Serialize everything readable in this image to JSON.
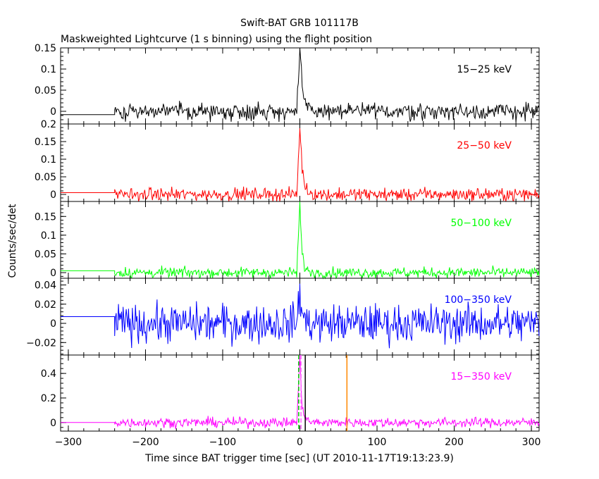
{
  "title": "Swift-BAT GRB 101117B",
  "subtitle": "Maskweighted Lightcurve (1 s binning) using the flight position",
  "xlabel": "Time since BAT trigger time [sec] (UT 2010-11-17T19:13:23.9)",
  "ylabel": "Counts/sec/det",
  "colors": {
    "axis": "#000000",
    "band1": "#000000",
    "band2": "#ff0000",
    "band3": "#00ff00",
    "band4": "#0000ff",
    "band5": "#ff00ff",
    "t90_start": "#00cc00",
    "t90_stop": "#000000",
    "t50": "#ff66ff",
    "marker_orange": "#ff8800"
  },
  "chart_data": {
    "type": "line",
    "x_range": [
      -310,
      310
    ],
    "x_ticks": [
      -300,
      -200,
      -100,
      0,
      100,
      200,
      300
    ],
    "x_tick_labels": [
      "−300",
      "−200",
      "−100",
      "0",
      "100",
      "200",
      "300"
    ],
    "data_start": -240,
    "pre_data_level": [
      -0.008,
      0.005,
      0.005,
      0.007,
      0.0
    ],
    "panels": [
      {
        "label": "15−25 keV",
        "ylim": [
          -0.03,
          0.15
        ],
        "yticks": [
          0,
          0.05,
          0.1,
          0.15
        ],
        "ytick_labels": [
          "0",
          "0.05",
          "0.1",
          "0.15"
        ],
        "peak": 0.14,
        "noise": 0.01,
        "decay": 4
      },
      {
        "label": "25−50 keV",
        "ylim": [
          -0.02,
          0.2
        ],
        "yticks": [
          0,
          0.05,
          0.1,
          0.15,
          0.2
        ],
        "ytick_labels": [
          "0",
          "0.05",
          "0.1",
          "0.15",
          "0.2"
        ],
        "peak": 0.19,
        "noise": 0.009,
        "decay": 4
      },
      {
        "label": "50−100 keV",
        "ylim": [
          -0.015,
          0.19
        ],
        "yticks": [
          0,
          0.05,
          0.1,
          0.15
        ],
        "ytick_labels": [
          "0",
          "0.05",
          "0.1",
          "0.15"
        ],
        "peak": 0.18,
        "noise": 0.007,
        "decay": 3
      },
      {
        "label": "100−350 keV",
        "ylim": [
          -0.033,
          0.047
        ],
        "yticks": [
          -0.02,
          0,
          0.02,
          0.04
        ],
        "ytick_labels": [
          "−0.02",
          "0",
          "0.02",
          "0.04"
        ],
        "peak": 0.035,
        "noise": 0.01,
        "decay": 3
      },
      {
        "label": "15−350 keV",
        "ylim": [
          -0.07,
          0.55
        ],
        "yticks": [
          0,
          0.2,
          0.4
        ],
        "ytick_labels": [
          "0",
          "0.2",
          "0.4"
        ],
        "peak": 0.52,
        "noise": 0.02,
        "decay": 3
      }
    ],
    "markers": [
      {
        "x": -1.5,
        "style": "dashed",
        "color_key": "t90_start"
      },
      {
        "x": 1.5,
        "style": "dashed",
        "color_key": "t50"
      },
      {
        "x": 7,
        "style": "solid",
        "color_key": "t90_stop"
      },
      {
        "x": 61,
        "style": "solid",
        "color_key": "marker_orange"
      }
    ]
  }
}
